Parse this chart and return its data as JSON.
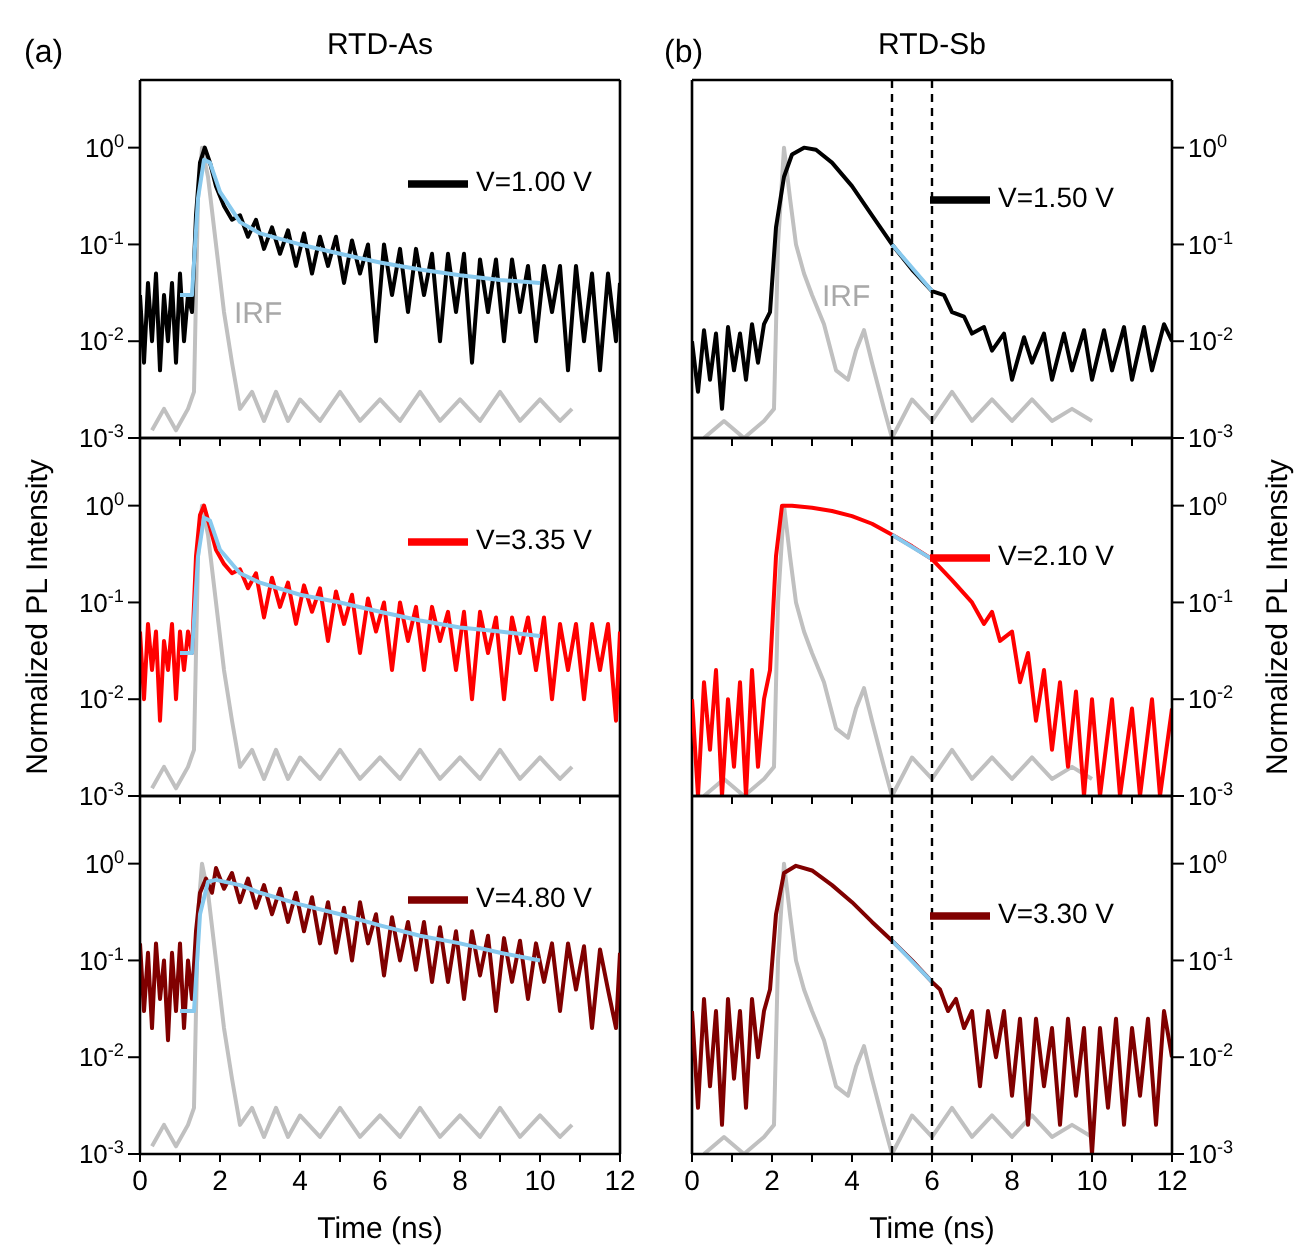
{
  "chart_data": [
    {
      "type": "line",
      "title": "RTD-As",
      "annotations": [
        "(a)",
        {
          "text": "IRF",
          "x": 2.1,
          "y": 0.02
        }
      ],
      "log": "y",
      "xlim": [
        0,
        12
      ],
      "ylim": [
        0.001,
        5
      ],
      "xticks": [
        0,
        {
          "value": 1,
          "label": null
        },
        2,
        {
          "value": 3,
          "label": null
        },
        4,
        {
          "value": 5,
          "label": null
        },
        6,
        {
          "value": 7,
          "label": null
        },
        8,
        {
          "value": 9,
          "label": null
        },
        10,
        {
          "value": 11,
          "label": null
        },
        12
      ],
      "yticks": [
        {
          "value": 0.001,
          "label": "10$^{-3}$"
        },
        {
          "value": 0.01,
          "label": "10$^{-2}$"
        },
        {
          "value": 0.1,
          "label": "10$^{-1}$"
        },
        {
          "value": 1,
          "label": "10$^{0}$"
        }
      ],
      "tick_labels": "y",
      "legend": "top right",
      "marker": "none",
      "series": [
        {
          "color": "#c0c0c0",
          "x": [
            0.3,
            0.6,
            0.9,
            1.2,
            1.35,
            1.45,
            1.55,
            1.7,
            1.9,
            2.1,
            2.3,
            2.5,
            2.8,
            3.1,
            3.4,
            3.7,
            4.0,
            4.5,
            5.0,
            5.5,
            6.0,
            6.5,
            7.0,
            7.5,
            8.0,
            8.5,
            9.0,
            9.5,
            10.0,
            10.5,
            10.8
          ],
          "values": [
            0.0012,
            0.002,
            0.0012,
            0.002,
            0.003,
            0.3,
            1.0,
            0.5,
            0.1,
            0.02,
            0.006,
            0.002,
            0.003,
            0.0015,
            0.003,
            0.0015,
            0.0025,
            0.0015,
            0.003,
            0.0015,
            0.0025,
            0.0015,
            0.003,
            0.0015,
            0.0025,
            0.0015,
            0.003,
            0.0015,
            0.0025,
            0.0015,
            0.002
          ]
        },
        {
          "name": "V=1.00 V",
          "color": "#000000",
          "x": [
            0,
            0.1,
            0.2,
            0.3,
            0.4,
            0.5,
            0.6,
            0.7,
            0.8,
            0.9,
            1.0,
            1.1,
            1.2,
            1.3,
            1.4,
            1.5,
            1.62,
            1.75,
            1.9,
            2.1,
            2.3,
            2.5,
            2.7,
            2.9,
            3.1,
            3.3,
            3.5,
            3.7,
            3.9,
            4.1,
            4.3,
            4.5,
            4.7,
            4.9,
            5.1,
            5.3,
            5.5,
            5.7,
            5.9,
            6.1,
            6.3,
            6.5,
            6.7,
            6.9,
            7.1,
            7.3,
            7.5,
            7.7,
            7.9,
            8.1,
            8.3,
            8.5,
            8.7,
            8.9,
            9.1,
            9.3,
            9.5,
            9.7,
            9.9,
            10.1,
            10.3,
            10.5,
            10.7,
            10.9,
            11.1,
            11.3,
            11.5,
            11.7,
            11.9,
            12
          ],
          "values": [
            0.03,
            0.006,
            0.04,
            0.01,
            0.05,
            0.005,
            0.03,
            0.01,
            0.04,
            0.006,
            0.05,
            0.01,
            0.03,
            0.02,
            0.2,
            0.7,
            1.0,
            0.7,
            0.4,
            0.25,
            0.18,
            0.2,
            0.12,
            0.18,
            0.09,
            0.15,
            0.08,
            0.14,
            0.06,
            0.13,
            0.05,
            0.12,
            0.06,
            0.12,
            0.04,
            0.11,
            0.05,
            0.1,
            0.01,
            0.1,
            0.03,
            0.09,
            0.02,
            0.09,
            0.03,
            0.08,
            0.01,
            0.08,
            0.02,
            0.08,
            0.006,
            0.07,
            0.02,
            0.07,
            0.01,
            0.07,
            0.02,
            0.06,
            0.01,
            0.06,
            0.02,
            0.06,
            0.005,
            0.06,
            0.01,
            0.05,
            0.005,
            0.05,
            0.01,
            0.04
          ]
        },
        {
          "color": "#87c9ee",
          "x": [
            1.0,
            1.3,
            1.45,
            1.6,
            1.75,
            2.0,
            2.5,
            3,
            4,
            5,
            6,
            7,
            8,
            9,
            10
          ],
          "values": [
            0.03,
            0.03,
            0.3,
            0.75,
            0.7,
            0.35,
            0.17,
            0.13,
            0.1,
            0.08,
            0.065,
            0.055,
            0.048,
            0.043,
            0.04
          ]
        }
      ]
    },
    {
      "type": "line",
      "ylabel": "Normalized PL Intensity",
      "log": "y",
      "xlim": [
        0,
        12
      ],
      "ylim": [
        0.001,
        5
      ],
      "xticks": [
        0,
        {
          "value": 1,
          "label": null
        },
        2,
        {
          "value": 3,
          "label": null
        },
        4,
        {
          "value": 5,
          "label": null
        },
        6,
        {
          "value": 7,
          "label": null
        },
        8,
        {
          "value": 9,
          "label": null
        },
        10,
        {
          "value": 11,
          "label": null
        },
        12
      ],
      "yticks": [
        {
          "value": 0.001,
          "label": "10$^{-3}$"
        },
        {
          "value": 0.01,
          "label": "10$^{-2}$"
        },
        {
          "value": 0.1,
          "label": "10$^{-1}$"
        },
        {
          "value": 1,
          "label": "10$^{0}$"
        }
      ],
      "tick_labels": "y",
      "legend": "top right",
      "marker": "none",
      "series": [
        {
          "color": "#c0c0c0",
          "x": [
            0.3,
            0.6,
            0.9,
            1.2,
            1.35,
            1.45,
            1.55,
            1.7,
            1.9,
            2.1,
            2.3,
            2.5,
            2.8,
            3.1,
            3.4,
            3.7,
            4.0,
            4.5,
            5.0,
            5.5,
            6.0,
            6.5,
            7.0,
            7.5,
            8.0,
            8.5,
            9.0,
            9.5,
            10.0,
            10.5,
            10.8
          ],
          "values": [
            0.0012,
            0.002,
            0.0012,
            0.002,
            0.003,
            0.3,
            1.0,
            0.5,
            0.1,
            0.02,
            0.006,
            0.002,
            0.003,
            0.0015,
            0.003,
            0.0015,
            0.0025,
            0.0015,
            0.003,
            0.0015,
            0.0025,
            0.0015,
            0.003,
            0.0015,
            0.0025,
            0.0015,
            0.003,
            0.0015,
            0.0025,
            0.0015,
            0.002
          ]
        },
        {
          "name": "V=3.35 V",
          "color": "#ff0000",
          "x": [
            0,
            0.1,
            0.2,
            0.3,
            0.4,
            0.5,
            0.6,
            0.7,
            0.8,
            0.9,
            1.0,
            1.1,
            1.2,
            1.3,
            1.4,
            1.5,
            1.6,
            1.75,
            1.9,
            2.1,
            2.3,
            2.5,
            2.7,
            2.9,
            3.1,
            3.3,
            3.5,
            3.7,
            3.9,
            4.1,
            4.3,
            4.5,
            4.7,
            4.9,
            5.1,
            5.3,
            5.5,
            5.7,
            5.9,
            6.1,
            6.3,
            6.5,
            6.7,
            6.9,
            7.1,
            7.3,
            7.5,
            7.7,
            7.9,
            8.1,
            8.3,
            8.5,
            8.7,
            8.9,
            9.1,
            9.3,
            9.5,
            9.7,
            9.9,
            10.1,
            10.3,
            10.5,
            10.7,
            10.9,
            11.1,
            11.3,
            11.5,
            11.7,
            11.9,
            12
          ],
          "values": [
            0.05,
            0.01,
            0.06,
            0.02,
            0.05,
            0.006,
            0.04,
            0.02,
            0.06,
            0.01,
            0.05,
            0.02,
            0.05,
            0.03,
            0.3,
            0.8,
            1.0,
            0.6,
            0.35,
            0.25,
            0.2,
            0.22,
            0.14,
            0.2,
            0.07,
            0.18,
            0.09,
            0.16,
            0.06,
            0.15,
            0.08,
            0.14,
            0.04,
            0.13,
            0.06,
            0.12,
            0.03,
            0.11,
            0.05,
            0.1,
            0.02,
            0.1,
            0.04,
            0.09,
            0.02,
            0.09,
            0.04,
            0.08,
            0.02,
            0.08,
            0.01,
            0.08,
            0.03,
            0.07,
            0.01,
            0.07,
            0.03,
            0.07,
            0.02,
            0.07,
            0.01,
            0.06,
            0.02,
            0.06,
            0.01,
            0.06,
            0.02,
            0.06,
            0.006,
            0.05
          ]
        },
        {
          "color": "#87c9ee",
          "x": [
            1.0,
            1.3,
            1.45,
            1.6,
            1.75,
            2.0,
            2.5,
            3,
            4,
            5,
            6,
            7,
            8,
            9,
            10
          ],
          "values": [
            0.03,
            0.03,
            0.3,
            0.75,
            0.7,
            0.35,
            0.2,
            0.16,
            0.12,
            0.1,
            0.08,
            0.065,
            0.055,
            0.05,
            0.045
          ]
        }
      ]
    },
    {
      "type": "line",
      "xlabel": "Time (ns)",
      "log": "y",
      "xlim": [
        0,
        12
      ],
      "ylim": [
        0.001,
        5
      ],
      "xticks": [
        0,
        {
          "value": 1,
          "label": null
        },
        2,
        {
          "value": 3,
          "label": null
        },
        4,
        {
          "value": 5,
          "label": null
        },
        6,
        {
          "value": 7,
          "label": null
        },
        8,
        {
          "value": 9,
          "label": null
        },
        10,
        {
          "value": 11,
          "label": null
        },
        12
      ],
      "yticks": [
        {
          "value": 0.001,
          "label": "10$^{-3}$"
        },
        {
          "value": 0.01,
          "label": "10$^{-2}$"
        },
        {
          "value": 0.1,
          "label": "10$^{-1}$"
        },
        {
          "value": 1,
          "label": "10$^{0}$"
        }
      ],
      "legend": "top right",
      "marker": "none",
      "series": [
        {
          "color": "#c0c0c0",
          "x": [
            0.3,
            0.6,
            0.9,
            1.2,
            1.35,
            1.45,
            1.55,
            1.7,
            1.9,
            2.1,
            2.3,
            2.5,
            2.8,
            3.1,
            3.4,
            3.7,
            4.0,
            4.5,
            5.0,
            5.5,
            6.0,
            6.5,
            7.0,
            7.5,
            8.0,
            8.5,
            9.0,
            9.5,
            10.0,
            10.5,
            10.8
          ],
          "values": [
            0.0012,
            0.002,
            0.0012,
            0.002,
            0.003,
            0.3,
            1.0,
            0.5,
            0.1,
            0.02,
            0.006,
            0.002,
            0.003,
            0.0015,
            0.003,
            0.0015,
            0.0025,
            0.0015,
            0.003,
            0.0015,
            0.0025,
            0.0015,
            0.003,
            0.0015,
            0.0025,
            0.0015,
            0.003,
            0.0015,
            0.0025,
            0.0015,
            0.002
          ]
        },
        {
          "name": "V=4.80 V",
          "color": "#800000",
          "x": [
            0,
            0.1,
            0.2,
            0.3,
            0.4,
            0.5,
            0.6,
            0.7,
            0.8,
            0.9,
            1.0,
            1.1,
            1.2,
            1.3,
            1.4,
            1.5,
            1.65,
            1.8,
            1.9,
            2.1,
            2.3,
            2.5,
            2.7,
            2.9,
            3.1,
            3.3,
            3.5,
            3.7,
            3.9,
            4.1,
            4.3,
            4.5,
            4.7,
            4.9,
            5.1,
            5.3,
            5.5,
            5.7,
            5.9,
            6.1,
            6.3,
            6.5,
            6.7,
            6.9,
            7.1,
            7.3,
            7.5,
            7.7,
            7.9,
            8.1,
            8.3,
            8.5,
            8.7,
            8.9,
            9.1,
            9.3,
            9.5,
            9.7,
            9.9,
            10.1,
            10.3,
            10.5,
            10.7,
            10.9,
            11.1,
            11.3,
            11.5,
            11.7,
            11.9,
            12
          ],
          "values": [
            0.15,
            0.03,
            0.12,
            0.02,
            0.15,
            0.04,
            0.1,
            0.015,
            0.12,
            0.03,
            0.15,
            0.02,
            0.1,
            0.04,
            0.2,
            0.5,
            0.7,
            0.5,
            0.9,
            0.55,
            0.8,
            0.4,
            0.7,
            0.35,
            0.6,
            0.3,
            0.55,
            0.25,
            0.5,
            0.2,
            0.45,
            0.15,
            0.4,
            0.12,
            0.35,
            0.1,
            0.4,
            0.15,
            0.3,
            0.07,
            0.28,
            0.1,
            0.25,
            0.08,
            0.25,
            0.06,
            0.22,
            0.06,
            0.2,
            0.04,
            0.2,
            0.07,
            0.18,
            0.03,
            0.17,
            0.06,
            0.16,
            0.04,
            0.15,
            0.06,
            0.15,
            0.03,
            0.15,
            0.05,
            0.14,
            0.02,
            0.13,
            0.05,
            0.02,
            0.12
          ]
        },
        {
          "color": "#87c9ee",
          "x": [
            1.0,
            1.35,
            1.5,
            1.7,
            1.9,
            2.5,
            3,
            4,
            5,
            6,
            7,
            8,
            9,
            10
          ],
          "values": [
            0.03,
            0.03,
            0.3,
            0.65,
            0.68,
            0.6,
            0.5,
            0.38,
            0.3,
            0.23,
            0.18,
            0.15,
            0.12,
            0.1
          ]
        }
      ]
    },
    {
      "type": "line",
      "title": "RTD-Sb",
      "annotations": [
        "(b)",
        {
          "text": "IRF",
          "x": 3.0,
          "y": 0.03
        }
      ],
      "log": "y",
      "xlim": [
        0,
        12
      ],
      "ylim": [
        0.001,
        5
      ],
      "xticks": [
        0,
        {
          "value": 1,
          "label": null
        },
        2,
        {
          "value": 3,
          "label": null
        },
        4,
        {
          "value": 5,
          "label": null
        },
        6,
        {
          "value": 7,
          "label": null
        },
        8,
        {
          "value": 9,
          "label": null
        },
        10,
        {
          "value": 11,
          "label": null
        },
        12
      ],
      "yticks": [
        {
          "value": 0.001,
          "label": "10$^{-3}$"
        },
        {
          "value": 0.01,
          "label": "10$^{-2}$"
        },
        {
          "value": 0.1,
          "label": "10$^{-1}$"
        },
        {
          "value": 1,
          "label": "10$^{0}$"
        }
      ],
      "tick_labels": "y",
      "legend": "top right",
      "marker": "none",
      "ref_lines": [
        {
          "axis": "x",
          "value": 5,
          "color": "#000000",
          "line_style": "dashed"
        },
        {
          "axis": "x",
          "value": 6,
          "color": "#000000",
          "line_style": "dashed"
        }
      ],
      "series": [
        {
          "color": "#c0c0c0",
          "x": [
            0.3,
            0.8,
            1.3,
            1.8,
            2.05,
            2.15,
            2.3,
            2.45,
            2.6,
            2.8,
            3.0,
            3.3,
            3.6,
            3.9,
            4.1,
            4.3,
            4.5,
            4.8,
            5.0,
            5.5,
            6,
            6.5,
            7,
            7.5,
            8,
            8.5,
            9,
            9.5,
            10
          ],
          "values": [
            0.001,
            0.0015,
            0.001,
            0.0015,
            0.002,
            0.1,
            1.0,
            0.3,
            0.1,
            0.05,
            0.03,
            0.015,
            0.005,
            0.004,
            0.008,
            0.013,
            0.006,
            0.002,
            0.001,
            0.0025,
            0.0015,
            0.003,
            0.0015,
            0.0025,
            0.0015,
            0.0025,
            0.0015,
            0.002,
            0.0015
          ]
        },
        {
          "name": "V=1.50 V",
          "color": "#000000",
          "x": [
            0,
            0.15,
            0.3,
            0.45,
            0.6,
            0.75,
            0.9,
            1.05,
            1.2,
            1.35,
            1.5,
            1.65,
            1.8,
            1.95,
            2.1,
            2.3,
            2.5,
            2.8,
            3.1,
            3.5,
            4,
            4.5,
            5,
            5.5,
            6,
            6.3,
            6.5,
            6.8,
            7,
            7.3,
            7.5,
            7.8,
            8,
            8.3,
            8.5,
            8.8,
            9,
            9.3,
            9.5,
            9.8,
            10,
            10.3,
            10.5,
            10.8,
            11,
            11.3,
            11.5,
            11.8,
            12
          ],
          "values": [
            0.01,
            0.003,
            0.013,
            0.004,
            0.012,
            0.002,
            0.014,
            0.005,
            0.012,
            0.004,
            0.015,
            0.006,
            0.015,
            0.02,
            0.15,
            0.5,
            0.85,
            1.0,
            0.95,
            0.7,
            0.4,
            0.2,
            0.1,
            0.055,
            0.033,
            0.03,
            0.02,
            0.018,
            0.012,
            0.014,
            0.008,
            0.012,
            0.004,
            0.011,
            0.006,
            0.012,
            0.004,
            0.012,
            0.005,
            0.013,
            0.004,
            0.013,
            0.005,
            0.014,
            0.004,
            0.014,
            0.005,
            0.015,
            0.01
          ]
        },
        {
          "color": "#87c9ee",
          "x": [
            5,
            6
          ],
          "values": [
            0.1,
            0.033
          ]
        }
      ]
    },
    {
      "type": "line",
      "ylabel": "Normalized PL Intensity",
      "log": "y",
      "xlim": [
        0,
        12
      ],
      "ylim": [
        0.001,
        5
      ],
      "xticks": [
        0,
        {
          "value": 1,
          "label": null
        },
        2,
        {
          "value": 3,
          "label": null
        },
        4,
        {
          "value": 5,
          "label": null
        },
        6,
        {
          "value": 7,
          "label": null
        },
        8,
        {
          "value": 9,
          "label": null
        },
        10,
        {
          "value": 11,
          "label": null
        },
        12
      ],
      "yticks": [
        {
          "value": 0.001,
          "label": "10$^{-3}$"
        },
        {
          "value": 0.01,
          "label": "10$^{-2}$"
        },
        {
          "value": 0.1,
          "label": "10$^{-1}$"
        },
        {
          "value": 1,
          "label": "10$^{0}$"
        }
      ],
      "tick_labels": "y",
      "legend": "top right",
      "marker": "none",
      "ref_lines": [
        {
          "axis": "x",
          "value": 5,
          "color": "#000000",
          "line_style": "dashed"
        },
        {
          "axis": "x",
          "value": 6,
          "color": "#000000",
          "line_style": "dashed"
        }
      ],
      "series": [
        {
          "color": "#c0c0c0",
          "x": [
            0.3,
            0.8,
            1.3,
            1.8,
            2.05,
            2.15,
            2.3,
            2.45,
            2.6,
            2.8,
            3.0,
            3.3,
            3.6,
            3.9,
            4.1,
            4.3,
            4.5,
            4.8,
            5.0,
            5.5,
            6,
            6.5,
            7,
            7.5,
            8,
            8.5,
            9,
            9.5,
            10
          ],
          "values": [
            0.001,
            0.0015,
            0.001,
            0.0015,
            0.002,
            0.1,
            1.0,
            0.3,
            0.1,
            0.05,
            0.03,
            0.015,
            0.005,
            0.004,
            0.008,
            0.013,
            0.006,
            0.002,
            0.001,
            0.0025,
            0.0015,
            0.003,
            0.0015,
            0.0025,
            0.0015,
            0.0025,
            0.0015,
            0.002,
            0.0015
          ]
        },
        {
          "name": "V=2.10 V",
          "color": "#ff0000",
          "x": [
            0,
            0.15,
            0.3,
            0.45,
            0.6,
            0.75,
            0.9,
            1.05,
            1.2,
            1.35,
            1.5,
            1.65,
            1.8,
            1.95,
            2.1,
            2.25,
            2.5,
            3,
            3.5,
            4,
            4.5,
            5,
            5.5,
            6,
            6.5,
            7,
            7.3,
            7.5,
            7.7,
            8,
            8.2,
            8.4,
            8.6,
            8.8,
            9,
            9.2,
            9.4,
            9.6,
            9.8,
            10,
            10.2,
            10.5,
            10.7,
            11,
            11.2,
            11.5,
            11.7,
            12
          ],
          "values": [
            0.01,
            0.001,
            0.015,
            0.003,
            0.02,
            0.001,
            0.01,
            0.002,
            0.015,
            0.001,
            0.02,
            0.002,
            0.01,
            0.02,
            0.3,
            1.0,
            1.0,
            0.95,
            0.88,
            0.78,
            0.65,
            0.5,
            0.38,
            0.28,
            0.17,
            0.1,
            0.06,
            0.08,
            0.04,
            0.05,
            0.015,
            0.03,
            0.006,
            0.02,
            0.003,
            0.015,
            0.002,
            0.012,
            0.001,
            0.01,
            0.001,
            0.01,
            0.001,
            0.008,
            0.001,
            0.01,
            0.001,
            0.008
          ]
        },
        {
          "color": "#87c9ee",
          "x": [
            5,
            6
          ],
          "values": [
            0.5,
            0.28
          ]
        }
      ]
    },
    {
      "type": "line",
      "xlabel": "Time (ns)",
      "log": "y",
      "xlim": [
        0,
        12
      ],
      "ylim": [
        0.001,
        5
      ],
      "xticks": [
        0,
        {
          "value": 1,
          "label": null
        },
        2,
        {
          "value": 3,
          "label": null
        },
        4,
        {
          "value": 5,
          "label": null
        },
        6,
        {
          "value": 7,
          "label": null
        },
        8,
        {
          "value": 9,
          "label": null
        },
        10,
        {
          "value": 11,
          "label": null
        },
        12
      ],
      "yticks": [
        {
          "value": 0.001,
          "label": "10$^{-3}$"
        },
        {
          "value": 0.01,
          "label": "10$^{-2}$"
        },
        {
          "value": 0.1,
          "label": "10$^{-1}$"
        },
        {
          "value": 1,
          "label": "10$^{0}$"
        }
      ],
      "legend": "top right",
      "marker": "none",
      "ref_lines": [
        {
          "axis": "x",
          "value": 5,
          "color": "#000000",
          "line_style": "dashed"
        },
        {
          "axis": "x",
          "value": 6,
          "color": "#000000",
          "line_style": "dashed"
        }
      ],
      "series": [
        {
          "color": "#c0c0c0",
          "x": [
            0.3,
            0.8,
            1.3,
            1.8,
            2.05,
            2.15,
            2.3,
            2.45,
            2.6,
            2.8,
            3.0,
            3.3,
            3.6,
            3.9,
            4.1,
            4.3,
            4.5,
            4.8,
            5.0,
            5.5,
            6,
            6.5,
            7,
            7.5,
            8,
            8.5,
            9,
            9.5,
            10
          ],
          "values": [
            0.001,
            0.0015,
            0.001,
            0.0015,
            0.002,
            0.1,
            1.0,
            0.3,
            0.1,
            0.05,
            0.03,
            0.015,
            0.005,
            0.004,
            0.008,
            0.013,
            0.006,
            0.002,
            0.001,
            0.0025,
            0.0015,
            0.003,
            0.0015,
            0.0025,
            0.0015,
            0.0025,
            0.0015,
            0.002,
            0.0015
          ]
        },
        {
          "name": "V=3.30 V",
          "color": "#800000",
          "x": [
            0,
            0.15,
            0.3,
            0.45,
            0.6,
            0.75,
            0.9,
            1.05,
            1.2,
            1.35,
            1.5,
            1.65,
            1.8,
            1.95,
            2.1,
            2.3,
            2.6,
            3,
            3.5,
            4,
            4.5,
            5,
            5.5,
            6,
            6.2,
            6.4,
            6.6,
            6.8,
            7,
            7.2,
            7.4,
            7.6,
            7.8,
            8,
            8.2,
            8.4,
            8.6,
            8.8,
            9,
            9.2,
            9.4,
            9.6,
            9.8,
            10,
            10.2,
            10.4,
            10.6,
            10.8,
            11,
            11.2,
            11.4,
            11.6,
            11.8,
            12
          ],
          "values": [
            0.03,
            0.003,
            0.04,
            0.005,
            0.03,
            0.002,
            0.04,
            0.006,
            0.03,
            0.003,
            0.04,
            0.01,
            0.03,
            0.05,
            0.3,
            0.8,
            0.95,
            0.85,
            0.6,
            0.4,
            0.25,
            0.16,
            0.1,
            0.06,
            0.05,
            0.03,
            0.04,
            0.02,
            0.03,
            0.005,
            0.03,
            0.01,
            0.03,
            0.004,
            0.025,
            0.002,
            0.025,
            0.005,
            0.02,
            0.002,
            0.025,
            0.004,
            0.02,
            0.001,
            0.02,
            0.003,
            0.025,
            0.002,
            0.02,
            0.004,
            0.025,
            0.002,
            0.03,
            0.01
          ]
        },
        {
          "color": "#87c9ee",
          "x": [
            5,
            6
          ],
          "values": [
            0.16,
            0.06
          ]
        }
      ]
    }
  ]
}
